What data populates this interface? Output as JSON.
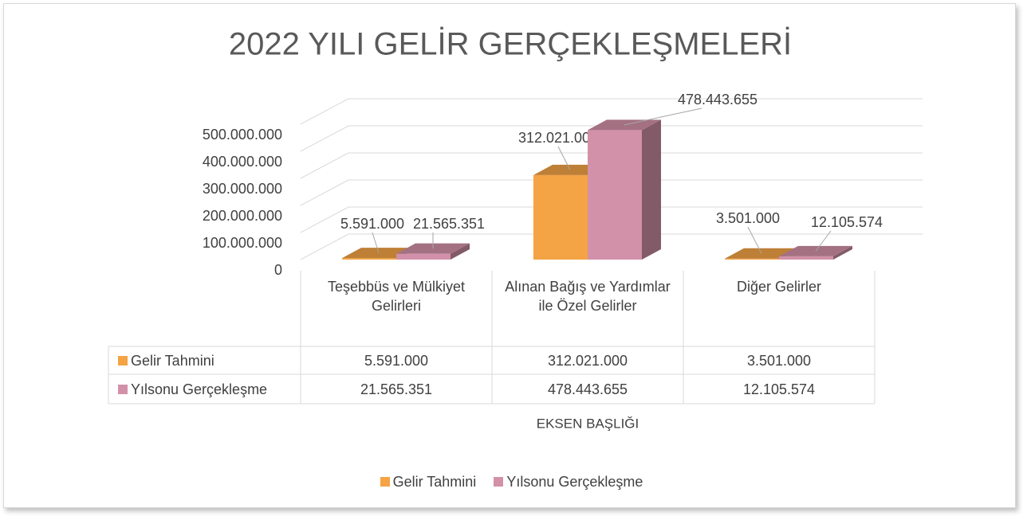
{
  "chart_data": {
    "type": "bar",
    "title": "2022 YILI GELİR GERÇEKLEŞMELERİ",
    "categories": [
      "Teşebbüs ve Mülkiyet Gelirleri",
      "Alınan Bağış ve Yardımlar ile Özel Gelirler",
      "Diğer Gelirler"
    ],
    "series": [
      {
        "name": "Gelir Tahmini",
        "color": "#f4a345",
        "values": [
          5591000,
          312021000,
          3501000
        ],
        "value_labels": [
          "5.591.000",
          "312.021.000",
          "3.501.000"
        ]
      },
      {
        "name": "Yılsonu Gerçekleşme",
        "color": "#d291a8",
        "values": [
          21565351,
          478443655,
          12105574
        ],
        "value_labels": [
          "21.565.351",
          "478.443.655",
          "12.105.574"
        ]
      }
    ],
    "x_label": "EKSEN BAŞLIĞI",
    "ylim": [
      0,
      500000000
    ],
    "yticks": [
      0,
      {
        "value": 100000000,
        "label": "100.000.000"
      },
      {
        "value": 200000000,
        "label": "200.000.000"
      },
      {
        "value": 300000000,
        "label": "300.000.000"
      },
      {
        "value": 400000000,
        "label": "400.000.000"
      },
      {
        "value": 500000000,
        "label": "500.000.000"
      }
    ],
    "grid": true,
    "legend": "bottom"
  }
}
